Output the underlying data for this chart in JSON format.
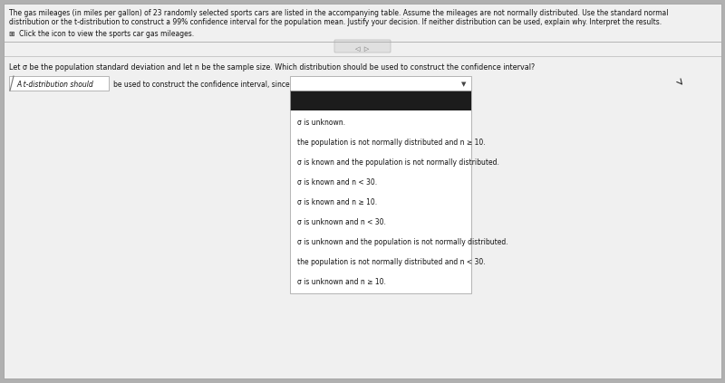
{
  "paragraph_text_line1": "The gas mileages (in miles per gallon) of 23 randomly selected sports cars are listed in the accompanying table. Assume the mileages are not normally distributed. Use the standard normal",
  "paragraph_text_line2": "distribution or the t-distribution to construct a 99% confidence interval for the population mean. Justify your decision. If neither distribution can be used, explain why. Interpret the results.",
  "click_text": "⊞  Click the icon to view the sports car gas mileages.",
  "question_text": "Let σ be the population standard deviation and let n be the sample size. Which distribution should be used to construct the confidence interval?",
  "label_left": "A t-distribution should",
  "label_mid": "be used to construct the confidence interval, since",
  "dropdown_items": [
    "σ is unknown.",
    "the population is not normally distributed and n ≥ 10.",
    "σ is known and the population is not normally distributed.",
    "σ is known and n < 30.",
    "σ is known and n ≥ 10.",
    "σ is unknown and n < 30.",
    "σ is unknown and the population is not normally distributed.",
    "the population is not normally distributed and n < 30.",
    "σ is unknown and n ≥ 10."
  ],
  "header_box_color": "#1c1c1c",
  "dropdown_box_color": "#ffffff",
  "dropdown_border_color": "#aaaaaa",
  "left_box_color": "#ffffff",
  "left_box_border": "#aaaaaa",
  "page_bg": "#b0b0b0",
  "content_bg": "#d8d8d8",
  "white_panel_bg": "#f0f0f0",
  "separator_color": "#aaaaaa",
  "text_color": "#111111",
  "nav_color": "#666666"
}
